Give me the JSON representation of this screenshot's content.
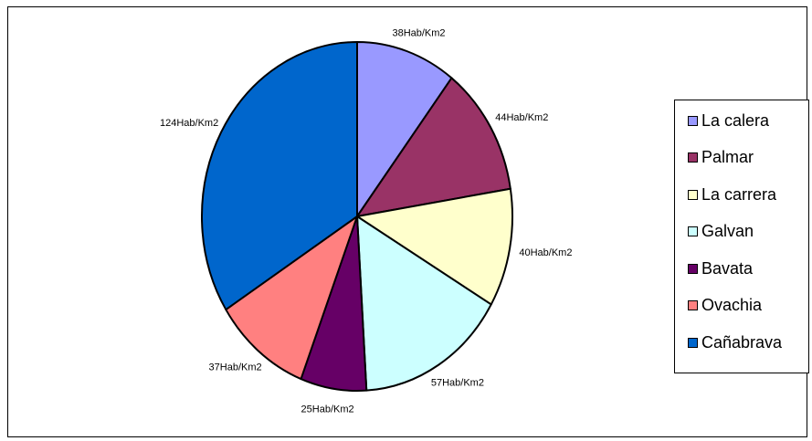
{
  "chart_data": {
    "type": "pie",
    "unit": "Hab/Km2",
    "categories": [
      "La calera",
      "Palmar",
      "La carrera",
      "Galvan",
      "Bavata",
      "Ovachia",
      "Cañabrava"
    ],
    "values": [
      38,
      44,
      40,
      57,
      25,
      37,
      124
    ],
    "data_labels": [
      "38Hab/Km2",
      "44Hab/Km2",
      "40Hab/Km2",
      "57Hab/Km2",
      "25Hab/Km2",
      "37Hab/Km2",
      "124Hab/Km2"
    ],
    "colors": [
      "#9999ff",
      "#993366",
      "#ffffcc",
      "#ccffff",
      "#660066",
      "#ff8080",
      "#0066cc"
    ],
    "legend_position": "right",
    "start": "12 o'clock",
    "direction": "clockwise"
  }
}
